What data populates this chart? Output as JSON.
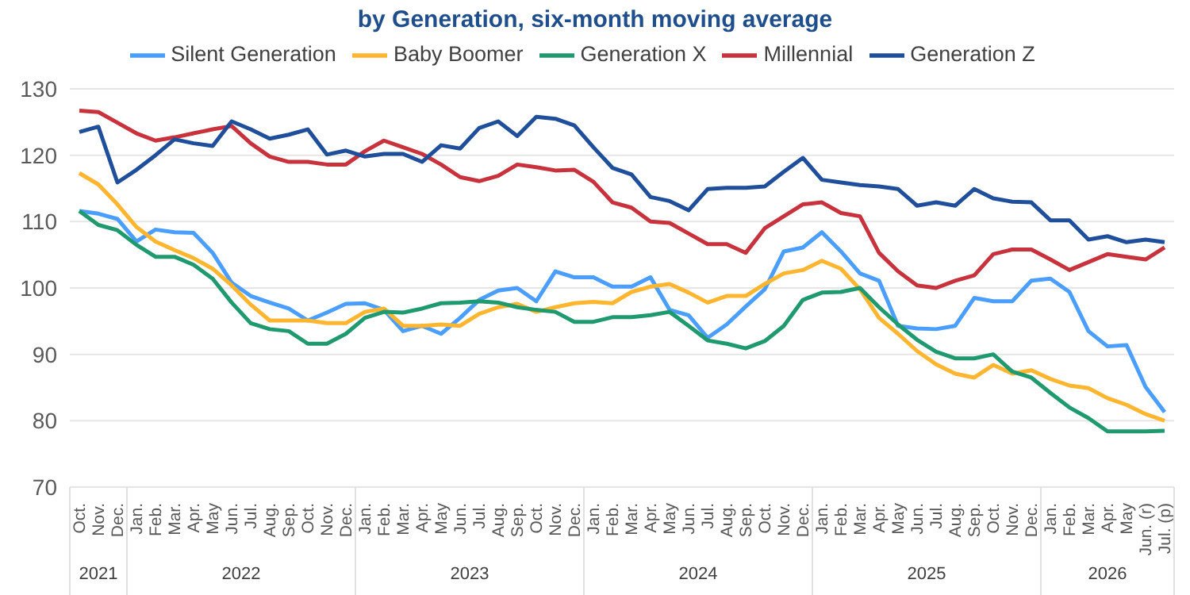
{
  "chart_data": {
    "type": "line",
    "title": "by Generation, six-month moving average",
    "categories": [
      "Oct.",
      "Nov.",
      "Dec.",
      "Jan.",
      "Feb.",
      "Mar.",
      "Apr.",
      "May",
      "Jun.",
      "Jul.",
      "Aug.",
      "Sep.",
      "Oct.",
      "Nov.",
      "Dec.",
      "Jan.",
      "Feb.",
      "Mar.",
      "Apr.",
      "May",
      "Jun.",
      "Jul.",
      "Aug.",
      "Sep.",
      "Oct.",
      "Nov.",
      "Dec.",
      "Jan.",
      "Feb.",
      "Mar.",
      "Apr.",
      "May",
      "Jun.",
      "Jul.",
      "Aug.",
      "Sep.",
      "Oct.",
      "Nov.",
      "Dec.",
      "Jan.",
      "Feb.",
      "Mar.",
      "Apr.",
      "May",
      "Jun.",
      "Jul.",
      "Aug.",
      "Sep.",
      "Oct.",
      "Nov.",
      "Dec.",
      "Jan.",
      "Feb.",
      "Mar.",
      "Apr.",
      "May",
      "Jun. (r)",
      "Jul. (p)"
    ],
    "series": [
      {
        "name": "Silent Generation",
        "color": "#4a9eff",
        "values": [
          111.6,
          111.2,
          110.4,
          107,
          108.8,
          108.4,
          108.3,
          105.3,
          100.8,
          98.8,
          97.8,
          96.9,
          95.1,
          96.3,
          97.6,
          97.7,
          96.7,
          93.5,
          94.3,
          93.1,
          95.5,
          98.2,
          99.6,
          100,
          98,
          102.5,
          101.6,
          101.6,
          100.2,
          100.2,
          101.6,
          96.7,
          95.9,
          92.5,
          94.5,
          97.2,
          99.8,
          105.5,
          106.1,
          108.4,
          105.5,
          102.2,
          101.1,
          94.3,
          93.9,
          93.8,
          94.3,
          98.5,
          98,
          98,
          101.1,
          101.4,
          99.4,
          93.5,
          91.2,
          91.4,
          85.1,
          81.3
        ]
      },
      {
        "name": "Baby Boomer",
        "color": "#ffb52e",
        "values": [
          117.3,
          115.6,
          112.6,
          109.2,
          107,
          105.7,
          104.5,
          102.9,
          100.4,
          97.5,
          95.1,
          95.1,
          95.1,
          94.7,
          94.7,
          96.4,
          96.9,
          94.3,
          94.3,
          94.5,
          94.3,
          96.1,
          97.1,
          97.6,
          96.4,
          97.1,
          97.7,
          97.9,
          97.7,
          99.4,
          100.2,
          100.6,
          99.3,
          97.8,
          98.8,
          98.8,
          100.6,
          102.2,
          102.7,
          104.1,
          102.9,
          99.8,
          95.5,
          93.1,
          90.5,
          88.5,
          87.1,
          86.5,
          88.4,
          87.1,
          87.6,
          86.3,
          85.3,
          84.9,
          83.4,
          82.4,
          81,
          80
        ]
      },
      {
        "name": "Generation X",
        "color": "#1f9a6e",
        "values": [
          111.6,
          109.5,
          108.7,
          106.5,
          104.7,
          104.7,
          103.5,
          101.4,
          97.8,
          94.7,
          93.8,
          93.5,
          91.6,
          91.6,
          93.1,
          95.5,
          96.4,
          96.3,
          96.9,
          97.7,
          97.8,
          98,
          97.8,
          97.1,
          96.7,
          96.4,
          94.9,
          94.9,
          95.6,
          95.6,
          95.9,
          96.4,
          94.3,
          92.1,
          91.6,
          90.9,
          92,
          94.3,
          98.2,
          99.3,
          99.4,
          100,
          97.1,
          94.5,
          92.2,
          90.4,
          89.4,
          89.4,
          90,
          87.4,
          86.5,
          84.2,
          82,
          80.4,
          78.4,
          78.4,
          78.4,
          78.5
        ]
      },
      {
        "name": "Millennial",
        "color": "#c8323c",
        "values": [
          126.7,
          126.5,
          124.9,
          123.3,
          122.2,
          122.7,
          123.3,
          123.9,
          124.4,
          121.8,
          119.8,
          119,
          119,
          118.6,
          118.6,
          120.6,
          122.2,
          121.2,
          120.2,
          118.6,
          116.7,
          116.1,
          116.9,
          118.6,
          118.2,
          117.7,
          117.8,
          116,
          112.9,
          112.1,
          110,
          109.8,
          108.2,
          106.6,
          106.6,
          105.3,
          109,
          110.8,
          112.6,
          112.9,
          111.3,
          110.8,
          105.3,
          102.5,
          100.4,
          100,
          101.1,
          101.9,
          105.1,
          105.8,
          105.8,
          104.3,
          102.7,
          103.9,
          105.1,
          104.7,
          104.3,
          106.1
        ]
      },
      {
        "name": "Generation Z",
        "color": "#1f4e9a",
        "values": [
          123.5,
          124.3,
          115.9,
          117.8,
          120,
          122.4,
          121.8,
          121.4,
          125.1,
          123.9,
          122.5,
          123.1,
          123.9,
          120.1,
          120.7,
          119.8,
          120.2,
          120.2,
          119,
          121.5,
          121,
          124.1,
          125.1,
          122.9,
          125.8,
          125.5,
          124.5,
          121.2,
          118.1,
          117.1,
          113.7,
          113.1,
          111.7,
          114.9,
          115.1,
          115.1,
          115.3,
          117.5,
          119.6,
          116.3,
          115.9,
          115.5,
          115.3,
          114.9,
          112.4,
          112.9,
          112.4,
          114.9,
          113.5,
          113,
          112.9,
          110.2,
          110.2,
          107.3,
          107.8,
          106.9,
          107.3,
          106.9
        ]
      }
    ],
    "annotations": [
      "2021",
      "2022",
      "2023",
      "2024",
      "2025",
      "2026"
    ],
    "ylim": [
      70,
      130
    ],
    "yticks": [
      70,
      80,
      90,
      100,
      110,
      120,
      130
    ],
    "grid": "y",
    "legend": "top",
    "marker": "none",
    "line_style": "solid"
  }
}
